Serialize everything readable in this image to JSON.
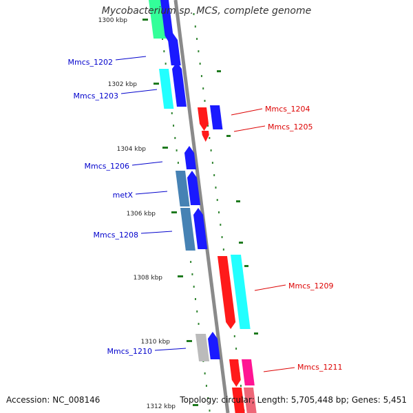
{
  "title": "Mycobacterium sp. MCS, complete genome",
  "accession_text": "Accession: NC_008146",
  "summary_text": "Topology: circular; Length: 5,705,448 bp; Genes: 5,451",
  "colors": {
    "backbone": "#8a8a8a",
    "tick": "#1e7a1e",
    "label_forward": "#0000cc",
    "label_reverse": "#dd0000",
    "blue": "#1a1aff",
    "cyan": "#22ffff",
    "steel": "#4682b4",
    "red": "#ff1a1a",
    "pink": "#ff1493",
    "spring": "#33ff99",
    "gray": "#bbbbbb"
  },
  "ticks": [
    {
      "label": "1300 kbp"
    },
    {
      "label": "1302 kbp"
    },
    {
      "label": "1304 kbp"
    },
    {
      "label": "1306 kbp"
    },
    {
      "label": "1308 kbp"
    },
    {
      "label": "1310 kbp"
    },
    {
      "label": "1312 kbp"
    }
  ],
  "gene_labels": [
    {
      "name": "Mmcs_1202",
      "strand": "forward"
    },
    {
      "name": "Mmcs_1203",
      "strand": "forward"
    },
    {
      "name": "Mmcs_1204",
      "strand": "reverse"
    },
    {
      "name": "Mmcs_1205",
      "strand": "reverse"
    },
    {
      "name": "Mmcs_1206",
      "strand": "forward"
    },
    {
      "name": "metX",
      "strand": "forward"
    },
    {
      "name": "Mmcs_1208",
      "strand": "forward"
    },
    {
      "name": "Mmcs_1209",
      "strand": "reverse"
    },
    {
      "name": "Mmcs_1210",
      "strand": "forward"
    },
    {
      "name": "Mmcs_1211",
      "strand": "reverse"
    }
  ]
}
